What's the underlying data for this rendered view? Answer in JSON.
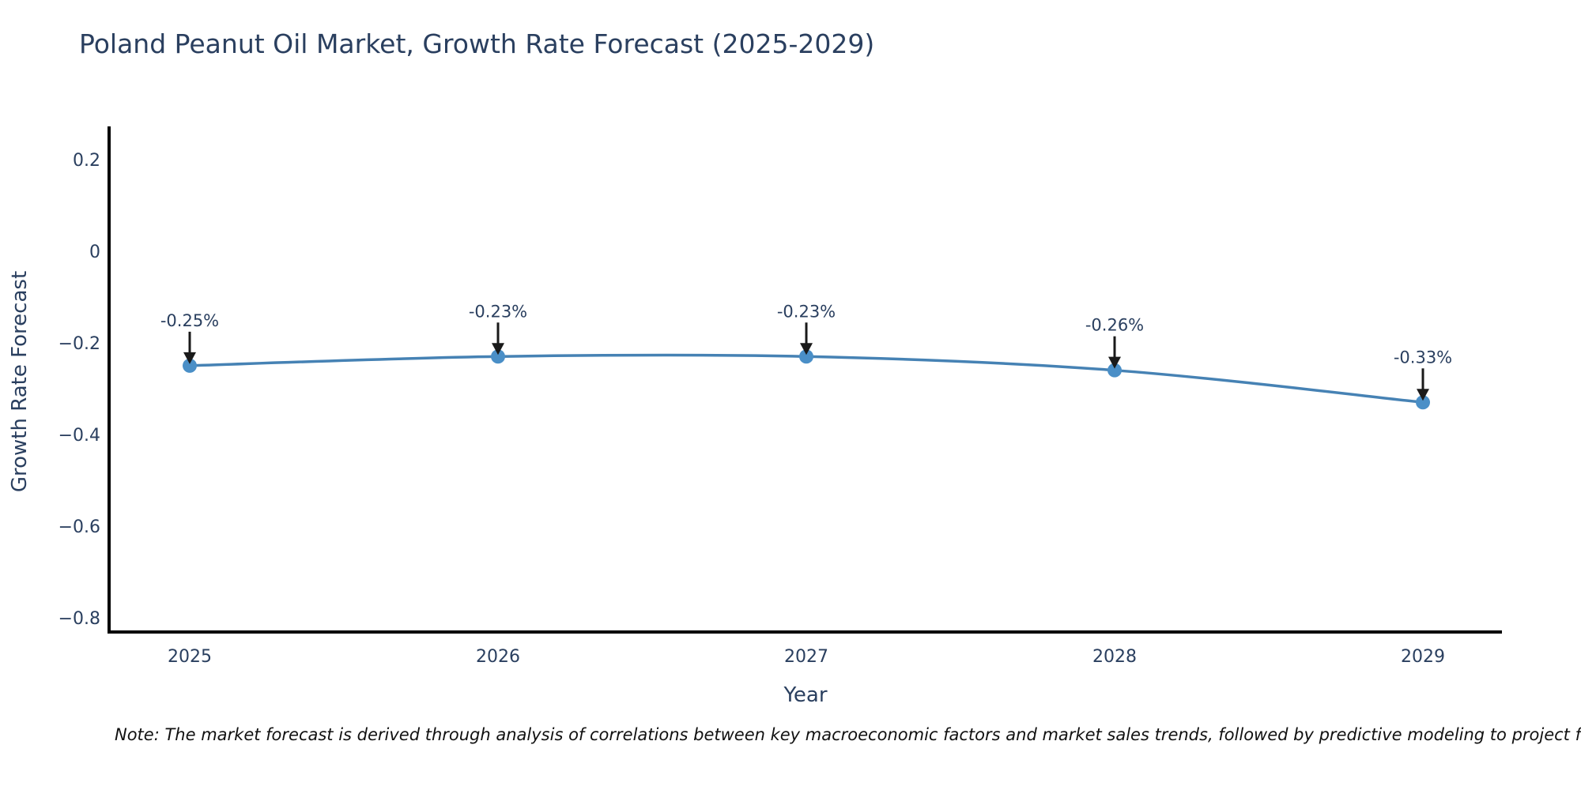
{
  "chart": {
    "title": "Poland Peanut Oil Market, Growth Rate Forecast (2025-2029)",
    "xlabel": "Year",
    "ylabel": "Growth Rate Forecast"
  },
  "note": "Note: The market forecast is derived through analysis of correlations between key macroeconomic factors and market sales trends, followed by predictive modeling to project future sa",
  "chart_data": {
    "type": "line",
    "title": "Poland Peanut Oil Market, Growth Rate Forecast (2025-2029)",
    "xlabel": "Year",
    "ylabel": "Growth Rate Forecast",
    "categories": [
      "2025",
      "2026",
      "2027",
      "2028",
      "2029"
    ],
    "series": [
      {
        "name": "Growth Rate Forecast",
        "values": [
          -0.25,
          -0.23,
          -0.23,
          -0.26,
          -0.33
        ]
      }
    ],
    "point_labels": [
      "-0.25%",
      "-0.23%",
      "-0.23%",
      "-0.26%",
      "-0.33%"
    ],
    "yticks": [
      0.2,
      0,
      -0.2,
      -0.4,
      -0.6,
      -0.8
    ],
    "ytick_labels": [
      "0.2",
      "0",
      "−0.2",
      "−0.4",
      "−0.6",
      "−0.8"
    ],
    "ylim": [
      -0.831,
      0.272
    ],
    "grid": false,
    "legend_position": "none",
    "line_shape": "spline",
    "colors": {
      "line": "#4682b4",
      "marker": "#4a8fc7",
      "axis_line": "#000000",
      "text": "#2a3f5f",
      "annotation_arrow": "#1a1a1a",
      "note_text": "#111111"
    }
  }
}
